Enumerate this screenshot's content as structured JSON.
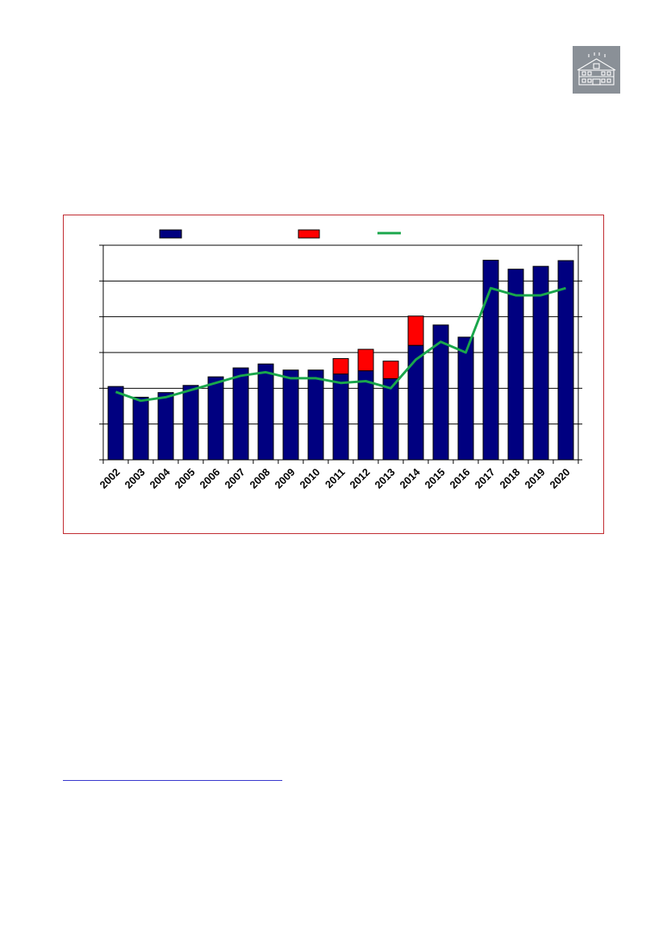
{
  "colors": {
    "primary_bar": "#000080",
    "secondary_bar": "#ff0000",
    "line": "#1aa64b",
    "frame": "#c0272d",
    "logo_bg": "#8a9097"
  },
  "logo": {
    "icon": "building-icon"
  },
  "chart_data": {
    "type": "bar",
    "categories": [
      "2002",
      "2003",
      "2004",
      "2005",
      "2006",
      "2007",
      "2008",
      "2009",
      "2010",
      "2011",
      "2012",
      "2013",
      "2014",
      "2015",
      "2016",
      "2017",
      "2018",
      "2019",
      "2020"
    ],
    "series": [
      {
        "kind": "bar-base",
        "values": [
          20.5,
          17.5,
          18.8,
          20.8,
          23.2,
          25.7,
          26.8,
          25.1,
          25.1,
          24.0,
          24.9,
          22.7,
          32.0,
          37.7,
          34.3,
          55.8,
          53.3,
          54.1,
          55.7
        ]
      },
      {
        "kind": "bar-stacked",
        "values": [
          0,
          0,
          0,
          0,
          0,
          0,
          0,
          0,
          0,
          4.3,
          6.0,
          4.9,
          8.2,
          0,
          0,
          0,
          0,
          0,
          0
        ]
      },
      {
        "kind": "line",
        "values": [
          19.0,
          16.5,
          17.5,
          19.5,
          21.5,
          23.5,
          24.5,
          22.8,
          22.8,
          21.5,
          22.0,
          20.0,
          28.0,
          33.0,
          30.0,
          48.0,
          46.0,
          46.0,
          48.0
        ]
      }
    ],
    "ylim": [
      0,
      60
    ],
    "y_tick_step": 10,
    "grid": true,
    "legend": {
      "position": "top",
      "entries": 3
    },
    "title": "",
    "xlabel": "",
    "ylabel": ""
  }
}
